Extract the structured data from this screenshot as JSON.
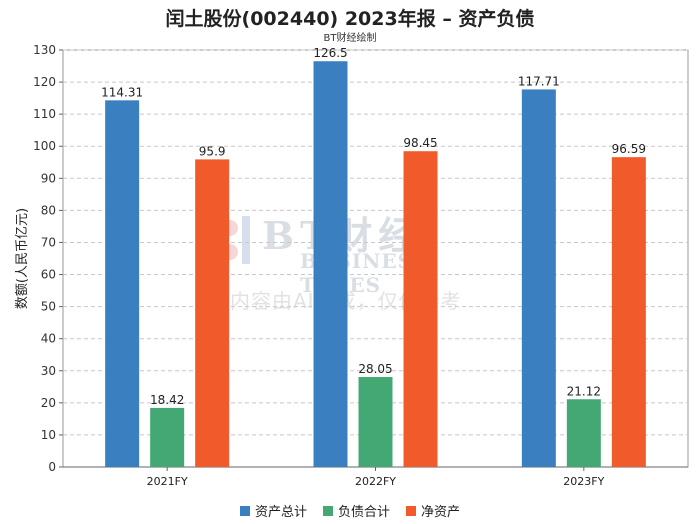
{
  "title": "闰土股份(002440) 2023年报 – 资产负债",
  "subtitle": "BT财经绘制",
  "watermark": {
    "brand": "BT财经",
    "brand_en": "BUSINESS TIMES",
    "note": "内容由AI生成，仅供参考"
  },
  "chart_data": {
    "type": "bar",
    "categories": [
      "2021FY",
      "2022FY",
      "2023FY"
    ],
    "series": [
      {
        "name": "资产总计",
        "values": [
          114.31,
          126.5,
          117.71
        ],
        "color": "#3a80c1"
      },
      {
        "name": "负债合计",
        "values": [
          18.42,
          28.05,
          21.12
        ],
        "color": "#43a874"
      },
      {
        "name": "净资产",
        "values": [
          95.9,
          98.45,
          96.59
        ],
        "color": "#f15a2a"
      }
    ],
    "ylabel": "数额(人民币亿元)",
    "xlabel": "",
    "ylim": [
      0,
      130
    ],
    "yticks": [
      0,
      10,
      20,
      30,
      40,
      50,
      60,
      70,
      80,
      90,
      100,
      110,
      120,
      130
    ],
    "grid": true,
    "legend_position": "bottom"
  }
}
